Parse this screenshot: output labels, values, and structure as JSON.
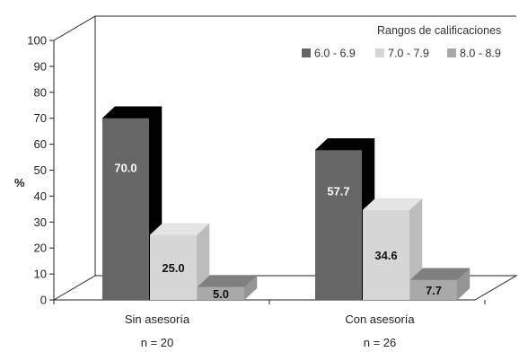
{
  "chart_data": {
    "type": "bar",
    "title": "",
    "xlabel": "",
    "ylabel": "%",
    "ylim": [
      0,
      100
    ],
    "yticks": [
      0,
      10,
      20,
      30,
      40,
      50,
      60,
      70,
      80,
      90,
      100
    ],
    "categories": [
      "Sin asesoría",
      "Con asesoría"
    ],
    "category_notes": [
      "n = 20",
      "n = 26"
    ],
    "legend_title": "Rangos de calificaciones",
    "legend_position": "top-right",
    "grid": false,
    "three_d": true,
    "series": [
      {
        "name": "6.0 - 6.9",
        "values": [
          70.0,
          57.7
        ],
        "color": "#666666"
      },
      {
        "name": "7.0 - 7.9",
        "values": [
          25.0,
          34.6
        ],
        "color": "#d6d6d6"
      },
      {
        "name": "8.0 - 8.9",
        "values": [
          5.0,
          7.7
        ],
        "color": "#a9a9a9"
      }
    ],
    "data_labels": [
      [
        "70.0",
        "57.7"
      ],
      [
        "25.0",
        "34.6"
      ],
      [
        "5.0",
        "7.7"
      ]
    ]
  }
}
